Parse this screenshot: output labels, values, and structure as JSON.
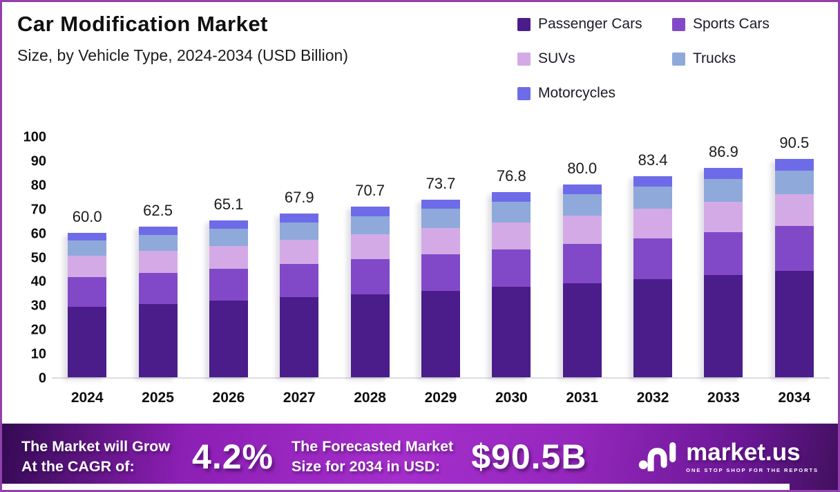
{
  "chart_data": {
    "type": "bar",
    "stacked": true,
    "title": "Car Modification Market",
    "subtitle": "Size, by Vehicle Type, 2024-2034 (USD Billion)",
    "categories": [
      "2024",
      "2025",
      "2026",
      "2027",
      "2028",
      "2029",
      "2030",
      "2031",
      "2032",
      "2033",
      "2034"
    ],
    "totals": [
      "60.0",
      "62.5",
      "65.1",
      "67.9",
      "70.7",
      "73.7",
      "76.8",
      "80.0",
      "83.4",
      "86.9",
      "90.5"
    ],
    "series": [
      {
        "name": "Passenger Cars",
        "color": "#4a1d8a",
        "values": [
          29.2,
          30.4,
          31.7,
          33.1,
          34.4,
          35.9,
          37.4,
          39.0,
          40.6,
          42.3,
          44.1
        ]
      },
      {
        "name": "Sports Cars",
        "color": "#8149c7",
        "values": [
          12.3,
          12.8,
          13.3,
          13.9,
          14.5,
          15.1,
          15.7,
          16.4,
          17.1,
          17.8,
          18.6
        ]
      },
      {
        "name": "SUVs",
        "color": "#d3aae6",
        "values": [
          8.8,
          9.1,
          9.5,
          9.9,
          10.3,
          10.8,
          11.2,
          11.7,
          12.2,
          12.7,
          13.2
        ]
      },
      {
        "name": "Trucks",
        "color": "#8ea9da",
        "values": [
          6.5,
          6.8,
          7.1,
          7.4,
          7.7,
          8.0,
          8.4,
          8.7,
          9.1,
          9.5,
          9.9
        ]
      },
      {
        "name": "Motorcycles",
        "color": "#6e6be8",
        "values": [
          3.2,
          3.4,
          3.5,
          3.6,
          3.8,
          3.9,
          4.1,
          4.2,
          4.4,
          4.6,
          4.7
        ]
      }
    ],
    "ylim": [
      0,
      100
    ],
    "yticks": [
      0,
      10,
      20,
      30,
      40,
      50,
      60,
      70,
      80,
      90,
      100
    ],
    "grid": false,
    "legend_position": "top-right"
  },
  "legend": [
    {
      "label": "Passenger Cars",
      "color": "#4a1d8a"
    },
    {
      "label": "Sports Cars",
      "color": "#8149c7"
    },
    {
      "label": "SUVs",
      "color": "#d3aae6"
    },
    {
      "label": "Trucks",
      "color": "#8ea9da"
    },
    {
      "label": "Motorcycles",
      "color": "#6e6be8"
    }
  ],
  "banner": {
    "cagr_label_line1": "The Market will Grow",
    "cagr_label_line2": "At the CAGR of:",
    "cagr_value": "4.2%",
    "forecast_label_line1": "The Forecasted Market",
    "forecast_label_line2": "Size for 2034 in USD:",
    "forecast_value": "$90.5B",
    "brand_name": "market.us",
    "brand_tagline": "ONE STOP SHOP FOR THE REPORTS"
  },
  "colors": {
    "frame_border": "#9240ab",
    "axis_line": "#dcdce2",
    "banner_center": "#a52ecb",
    "banner_edge": "#330a52"
  }
}
